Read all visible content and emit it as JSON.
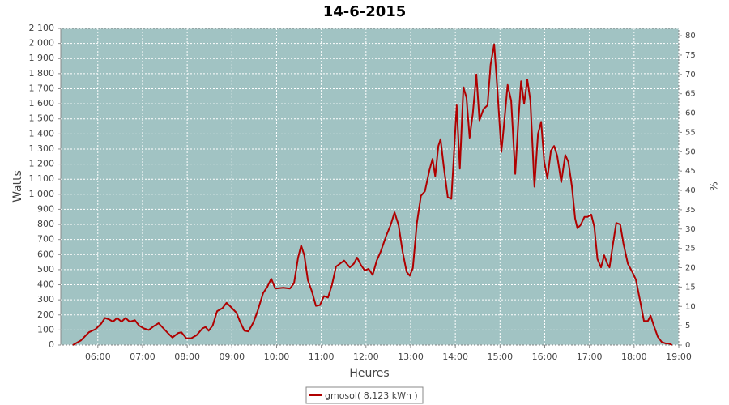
{
  "chart_data": {
    "type": "line",
    "title": "14-6-2015",
    "xlabel": "Heures",
    "ylabel": "Watts",
    "y2label": "%",
    "background": "#a1c3c3",
    "grid": true,
    "legend": "bottom",
    "xlim": [
      5.17,
      19.0
    ],
    "xticks": [
      {
        "value": 6,
        "label": "06:00"
      },
      {
        "value": 7,
        "label": "07:00"
      },
      {
        "value": 8,
        "label": "08:00"
      },
      {
        "value": 9,
        "label": "09:00"
      },
      {
        "value": 10,
        "label": "10:00"
      },
      {
        "value": 11,
        "label": "11:00"
      },
      {
        "value": 12,
        "label": "12:00"
      },
      {
        "value": 13,
        "label": "13:00"
      },
      {
        "value": 14,
        "label": "14:00"
      },
      {
        "value": 15,
        "label": "15:00"
      },
      {
        "value": 16,
        "label": "16:00"
      },
      {
        "value": 17,
        "label": "17:00"
      },
      {
        "value": 18,
        "label": "18:00"
      },
      {
        "value": 19,
        "label": "19:00"
      }
    ],
    "ylim": [
      0,
      2100
    ],
    "yticks": [
      0,
      100,
      200,
      300,
      400,
      500,
      600,
      700,
      800,
      900,
      {
        "value": 1000,
        "label": "1 000"
      },
      {
        "value": 1100,
        "label": "1 100"
      },
      {
        "value": 1200,
        "label": "1 200"
      },
      {
        "value": 1300,
        "label": "1 300"
      },
      {
        "value": 1400,
        "label": "1 400"
      },
      {
        "value": 1500,
        "label": "1 500"
      },
      {
        "value": 1600,
        "label": "1 600"
      },
      {
        "value": 1700,
        "label": "1 700"
      },
      {
        "value": 1800,
        "label": "1 800"
      },
      {
        "value": 1900,
        "label": "1 900"
      },
      {
        "value": 2000,
        "label": "2 000"
      },
      {
        "value": 2100,
        "label": "2 100"
      }
    ],
    "y2lim": [
      0,
      81.9
    ],
    "y2ticks": [
      0,
      5,
      10,
      15,
      20,
      25,
      30,
      35,
      40,
      45,
      50,
      55,
      60,
      65,
      70,
      75,
      80
    ],
    "x": [
      5.44,
      5.62,
      5.8,
      5.95,
      6.07,
      6.16,
      6.25,
      6.34,
      6.43,
      6.53,
      6.62,
      6.71,
      6.83,
      6.92,
      7.03,
      7.14,
      7.25,
      7.36,
      7.47,
      7.58,
      7.67,
      7.8,
      7.87,
      7.98,
      8.09,
      8.21,
      8.34,
      8.41,
      8.48,
      8.57,
      8.67,
      8.79,
      8.88,
      8.97,
      9.1,
      9.19,
      9.28,
      9.37,
      9.48,
      9.57,
      9.7,
      9.79,
      9.88,
      9.97,
      10.15,
      10.3,
      10.39,
      10.48,
      10.55,
      10.62,
      10.7,
      10.79,
      10.88,
      10.97,
      11.06,
      11.15,
      11.24,
      11.33,
      11.42,
      11.51,
      11.64,
      11.73,
      11.8,
      11.89,
      11.97,
      12.06,
      12.15,
      12.24,
      12.33,
      12.46,
      12.55,
      12.64,
      12.73,
      12.82,
      12.91,
      12.98,
      13.05,
      13.14,
      13.23,
      13.32,
      13.42,
      13.49,
      13.55,
      13.62,
      13.67,
      13.74,
      13.83,
      13.91,
      13.96,
      14.03,
      14.1,
      14.18,
      14.25,
      14.32,
      14.39,
      14.47,
      14.54,
      14.63,
      14.72,
      14.79,
      14.87,
      14.94,
      15.03,
      15.08,
      15.17,
      15.25,
      15.34,
      15.41,
      15.47,
      15.54,
      15.61,
      15.68,
      15.77,
      15.85,
      15.92,
      15.99,
      16.06,
      16.14,
      16.21,
      16.28,
      16.37,
      16.46,
      16.53,
      16.61,
      16.68,
      16.73,
      16.8,
      16.89,
      16.96,
      17.04,
      17.11,
      17.18,
      17.26,
      17.33,
      17.4,
      17.45,
      17.53,
      17.6,
      17.69,
      17.76,
      17.86,
      17.95,
      18.04,
      18.13,
      18.22,
      18.31,
      18.37,
      18.44,
      18.53,
      18.62,
      18.71,
      18.78,
      18.85
    ],
    "series": [
      {
        "name": "gmosol( 8,123 kWh )",
        "color": "#b00000",
        "values": [
          0,
          30,
          85,
          105,
          140,
          180,
          170,
          155,
          180,
          155,
          180,
          155,
          165,
          130,
          110,
          100,
          125,
          145,
          110,
          75,
          50,
          80,
          85,
          45,
          45,
          65,
          110,
          120,
          95,
          130,
          225,
          245,
          280,
          255,
          215,
          150,
          95,
          90,
          150,
          220,
          345,
          385,
          440,
          375,
          380,
          375,
          410,
          580,
          660,
          595,
          430,
          355,
          260,
          265,
          325,
          315,
          400,
          520,
          540,
          560,
          515,
          540,
          580,
          530,
          495,
          505,
          465,
          560,
          620,
          730,
          795,
          880,
          795,
          620,
          485,
          460,
          510,
          810,
          990,
          1020,
          1160,
          1235,
          1120,
          1320,
          1365,
          1185,
          980,
          970,
          1215,
          1590,
          1170,
          1710,
          1640,
          1375,
          1535,
          1795,
          1490,
          1565,
          1590,
          1860,
          1995,
          1700,
          1280,
          1430,
          1725,
          1620,
          1135,
          1480,
          1750,
          1600,
          1760,
          1620,
          1050,
          1400,
          1480,
          1215,
          1105,
          1290,
          1320,
          1255,
          1080,
          1260,
          1215,
          1050,
          840,
          775,
          795,
          850,
          850,
          865,
          785,
          570,
          515,
          595,
          540,
          515,
          675,
          810,
          800,
          675,
          540,
          490,
          435,
          300,
          160,
          160,
          195,
          130,
          55,
          20,
          10,
          10,
          0
        ]
      }
    ]
  }
}
